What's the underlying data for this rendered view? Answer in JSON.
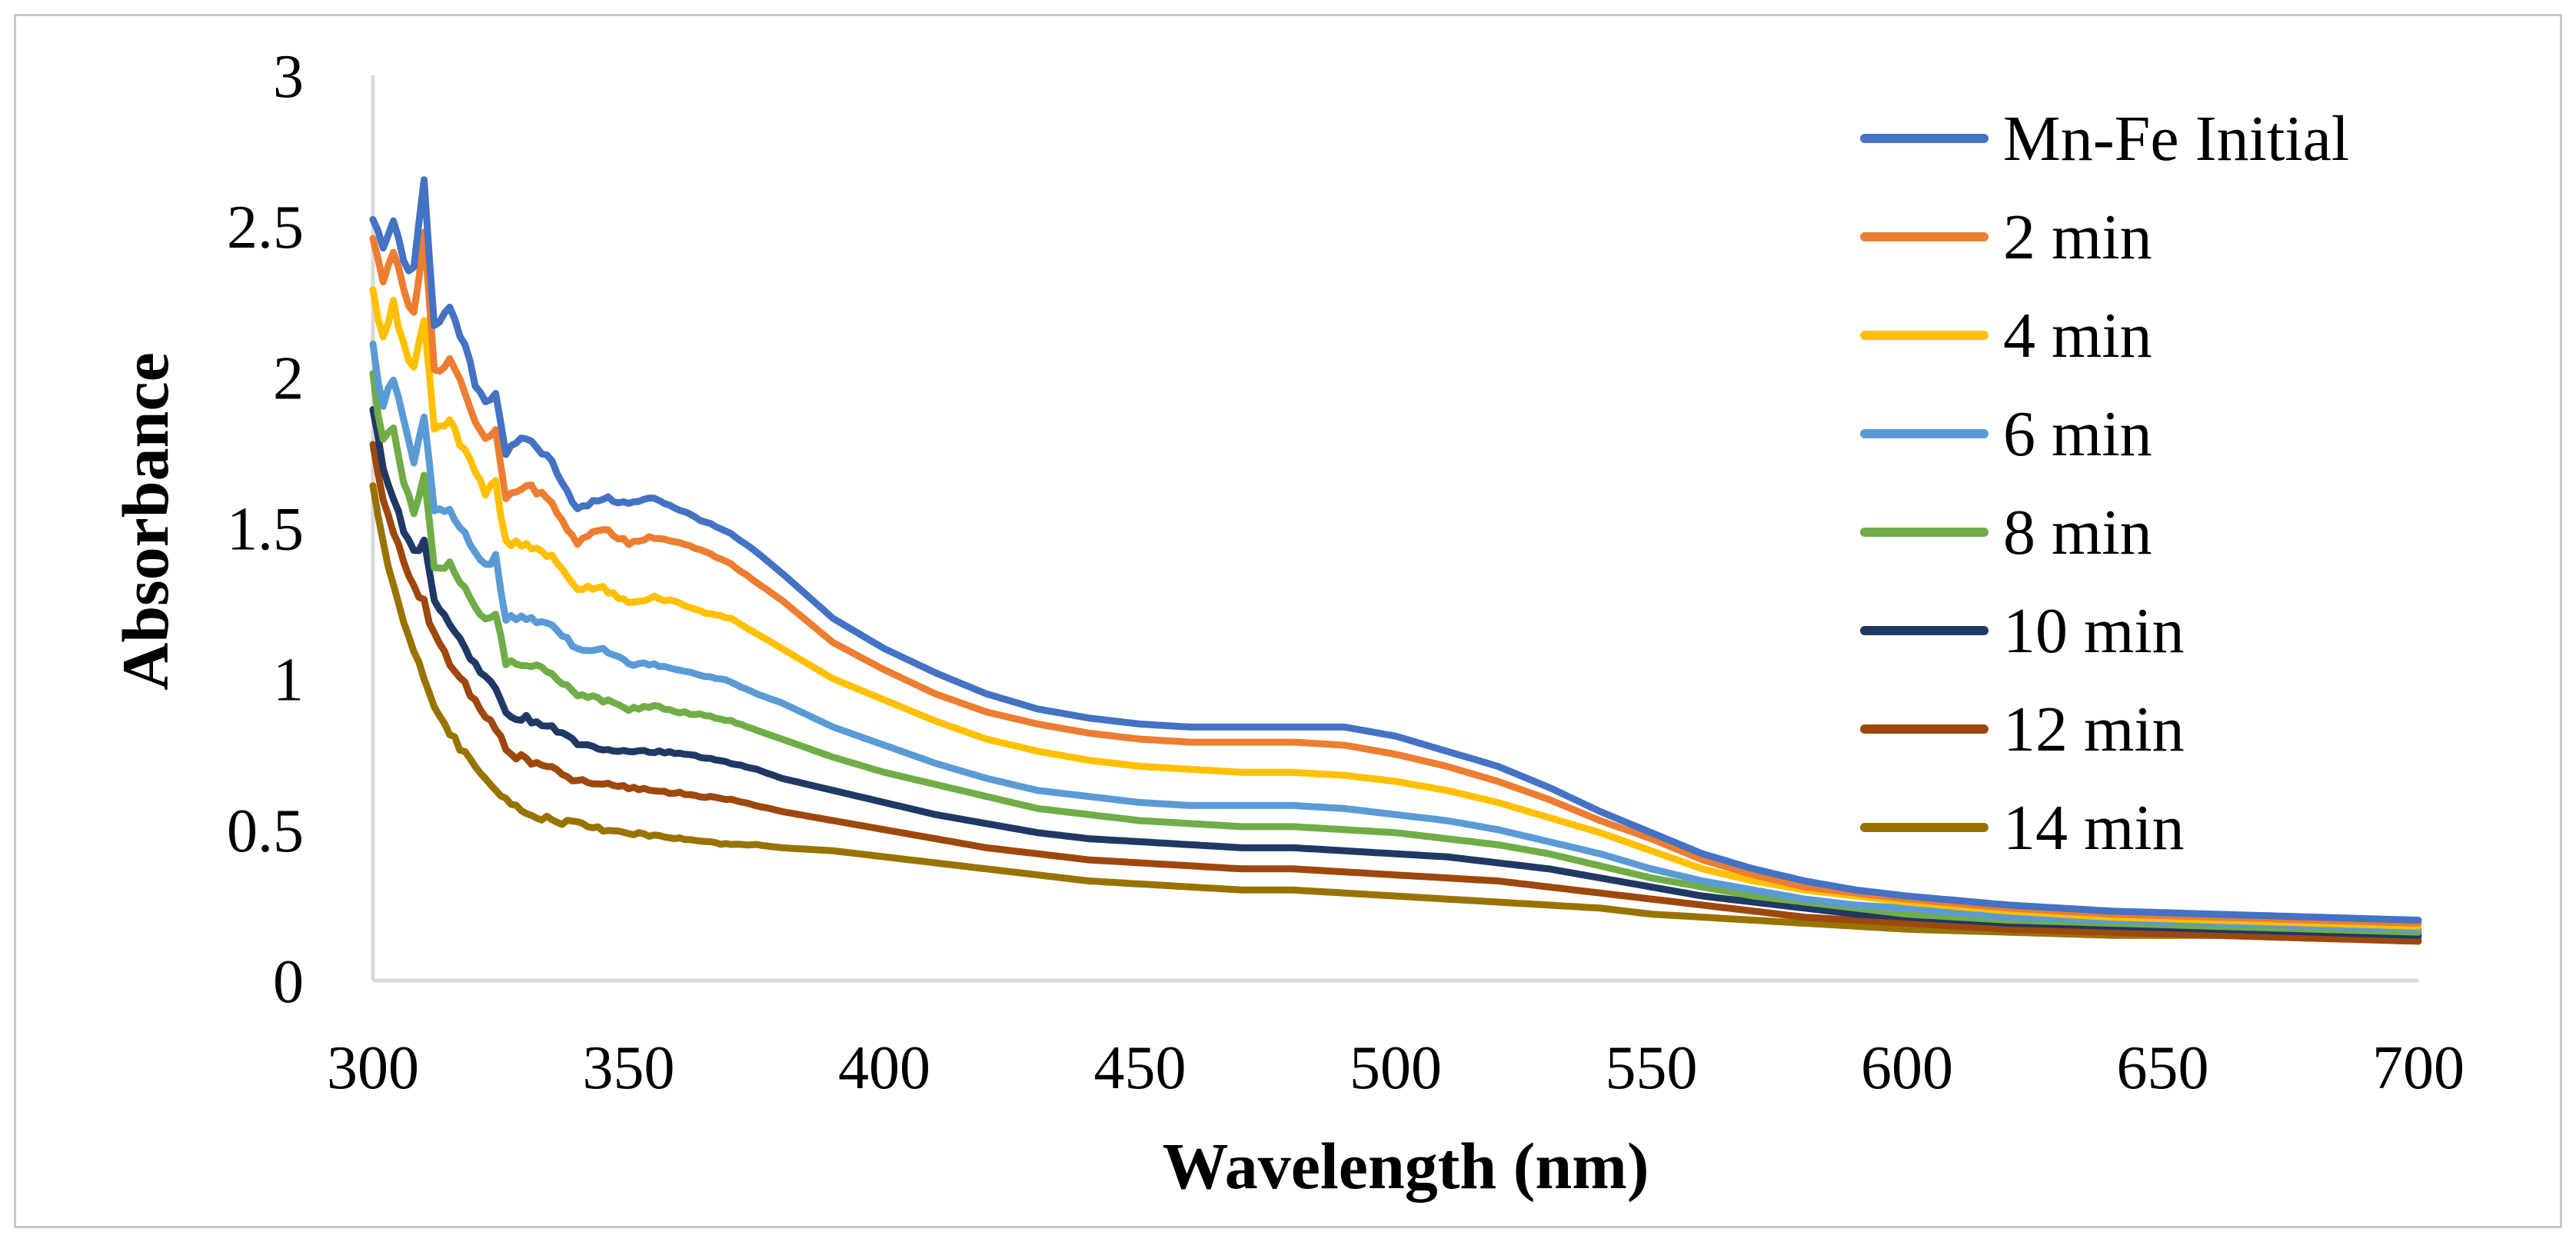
{
  "chart_data": {
    "type": "line",
    "title": "",
    "xlabel": "Wavelength (nm)",
    "ylabel": "Absorbance",
    "xlim": [
      300,
      700
    ],
    "ylim": [
      0,
      3
    ],
    "xticks": [
      300,
      350,
      400,
      450,
      500,
      550,
      600,
      650,
      700
    ],
    "yticks": [
      0,
      0.5,
      1,
      1.5,
      2,
      2.5,
      3
    ],
    "ytick_labels": [
      "0",
      "0.5",
      "1",
      "1.5",
      "2",
      "2.5",
      "3"
    ],
    "grid": false,
    "legend_position": "top-right",
    "x": [
      300,
      302,
      304,
      306,
      308,
      310,
      312,
      315,
      318,
      320,
      322,
      324,
      326,
      330,
      335,
      340,
      345,
      350,
      355,
      360,
      365,
      370,
      375,
      380,
      390,
      400,
      410,
      420,
      430,
      440,
      450,
      460,
      470,
      480,
      490,
      500,
      510,
      520,
      530,
      540,
      550,
      560,
      570,
      580,
      590,
      600,
      620,
      640,
      660,
      680,
      700
    ],
    "series": [
      {
        "name": "Mn-Fe Initial",
        "color": "#4472c4",
        "values": [
          2.52,
          2.42,
          2.52,
          2.38,
          2.35,
          2.65,
          2.18,
          2.22,
          2.1,
          1.98,
          1.92,
          1.95,
          1.75,
          1.8,
          1.72,
          1.56,
          1.6,
          1.58,
          1.6,
          1.56,
          1.52,
          1.48,
          1.42,
          1.35,
          1.2,
          1.1,
          1.02,
          0.95,
          0.9,
          0.87,
          0.85,
          0.84,
          0.84,
          0.84,
          0.84,
          0.81,
          0.76,
          0.71,
          0.64,
          0.56,
          0.49,
          0.42,
          0.37,
          0.33,
          0.3,
          0.28,
          0.25,
          0.23,
          0.22,
          0.21,
          0.2
        ]
      },
      {
        "name": "2 min",
        "color": "#ed7d31",
        "values": [
          2.45,
          2.3,
          2.42,
          2.28,
          2.2,
          2.48,
          2.02,
          2.05,
          1.95,
          1.85,
          1.8,
          1.82,
          1.6,
          1.65,
          1.58,
          1.45,
          1.5,
          1.45,
          1.47,
          1.45,
          1.42,
          1.38,
          1.32,
          1.26,
          1.12,
          1.03,
          0.95,
          0.89,
          0.85,
          0.82,
          0.8,
          0.79,
          0.79,
          0.79,
          0.78,
          0.75,
          0.71,
          0.66,
          0.6,
          0.53,
          0.47,
          0.4,
          0.35,
          0.31,
          0.29,
          0.27,
          0.24,
          0.22,
          0.21,
          0.2,
          0.19
        ]
      },
      {
        "name": "4 min",
        "color": "#ffc000",
        "values": [
          2.3,
          2.12,
          2.25,
          2.1,
          2.02,
          2.2,
          1.82,
          1.85,
          1.75,
          1.68,
          1.62,
          1.65,
          1.45,
          1.45,
          1.4,
          1.3,
          1.3,
          1.25,
          1.27,
          1.25,
          1.22,
          1.2,
          1.15,
          1.1,
          1.0,
          0.93,
          0.86,
          0.8,
          0.76,
          0.73,
          0.71,
          0.7,
          0.69,
          0.69,
          0.68,
          0.66,
          0.63,
          0.59,
          0.54,
          0.49,
          0.43,
          0.37,
          0.33,
          0.3,
          0.28,
          0.26,
          0.23,
          0.21,
          0.2,
          0.19,
          0.18
        ]
      },
      {
        "name": "6 min",
        "color": "#5b9bd5",
        "values": [
          2.1,
          1.9,
          2.0,
          1.85,
          1.72,
          1.88,
          1.55,
          1.55,
          1.48,
          1.42,
          1.38,
          1.4,
          1.2,
          1.2,
          1.18,
          1.1,
          1.1,
          1.05,
          1.05,
          1.03,
          1.01,
          0.99,
          0.95,
          0.92,
          0.84,
          0.78,
          0.72,
          0.67,
          0.63,
          0.61,
          0.59,
          0.58,
          0.58,
          0.58,
          0.57,
          0.55,
          0.53,
          0.5,
          0.46,
          0.42,
          0.37,
          0.33,
          0.3,
          0.27,
          0.25,
          0.24,
          0.21,
          0.2,
          0.19,
          0.18,
          0.17
        ]
      },
      {
        "name": "8 min",
        "color": "#70ad47",
        "values": [
          2.0,
          1.78,
          1.82,
          1.65,
          1.55,
          1.66,
          1.38,
          1.38,
          1.3,
          1.25,
          1.2,
          1.22,
          1.05,
          1.05,
          1.02,
          0.95,
          0.93,
          0.9,
          0.91,
          0.89,
          0.88,
          0.86,
          0.83,
          0.8,
          0.74,
          0.69,
          0.65,
          0.61,
          0.57,
          0.55,
          0.53,
          0.52,
          0.51,
          0.51,
          0.5,
          0.49,
          0.47,
          0.45,
          0.42,
          0.38,
          0.34,
          0.31,
          0.28,
          0.26,
          0.24,
          0.22,
          0.2,
          0.19,
          0.18,
          0.17,
          0.16
        ]
      },
      {
        "name": "10 min",
        "color": "#203864",
        "values": [
          1.88,
          1.7,
          1.6,
          1.5,
          1.42,
          1.45,
          1.25,
          1.18,
          1.1,
          1.05,
          1.0,
          0.98,
          0.88,
          0.87,
          0.84,
          0.79,
          0.77,
          0.76,
          0.76,
          0.75,
          0.74,
          0.72,
          0.7,
          0.67,
          0.63,
          0.59,
          0.55,
          0.52,
          0.49,
          0.47,
          0.46,
          0.45,
          0.44,
          0.44,
          0.43,
          0.42,
          0.41,
          0.39,
          0.37,
          0.34,
          0.31,
          0.28,
          0.26,
          0.24,
          0.22,
          0.21,
          0.19,
          0.18,
          0.17,
          0.16,
          0.15
        ]
      },
      {
        "name": "12 min",
        "color": "#9e480e",
        "values": [
          1.78,
          1.6,
          1.48,
          1.38,
          1.3,
          1.25,
          1.15,
          1.05,
          0.98,
          0.93,
          0.88,
          0.84,
          0.76,
          0.73,
          0.7,
          0.66,
          0.65,
          0.64,
          0.63,
          0.62,
          0.61,
          0.6,
          0.58,
          0.56,
          0.53,
          0.5,
          0.47,
          0.44,
          0.42,
          0.4,
          0.39,
          0.38,
          0.37,
          0.37,
          0.36,
          0.35,
          0.34,
          0.33,
          0.31,
          0.29,
          0.27,
          0.25,
          0.23,
          0.21,
          0.2,
          0.19,
          0.17,
          0.16,
          0.15,
          0.14,
          0.13
        ]
      },
      {
        "name": "14 min",
        "color": "#997300",
        "values": [
          1.65,
          1.45,
          1.3,
          1.18,
          1.08,
          1.0,
          0.92,
          0.82,
          0.75,
          0.7,
          0.66,
          0.63,
          0.6,
          0.56,
          0.53,
          0.52,
          0.5,
          0.49,
          0.48,
          0.47,
          0.46,
          0.45,
          0.45,
          0.44,
          0.43,
          0.41,
          0.39,
          0.37,
          0.35,
          0.33,
          0.32,
          0.31,
          0.3,
          0.3,
          0.29,
          0.28,
          0.27,
          0.26,
          0.25,
          0.24,
          0.22,
          0.21,
          0.2,
          0.19,
          0.18,
          0.17,
          0.16,
          0.15,
          0.15,
          0.14,
          0.14
        ]
      }
    ]
  }
}
